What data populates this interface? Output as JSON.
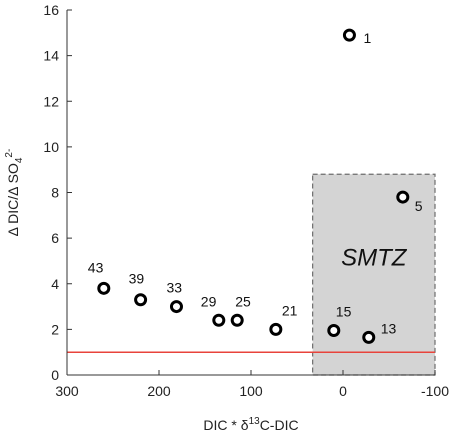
{
  "chart_data": {
    "type": "scatter",
    "xlabel": "DIC * δ13C-DIC",
    "xlabel_parts": [
      "DIC * δ",
      "13",
      "C-DIC"
    ],
    "ylabel": "Δ DIC/Δ SO4 2-",
    "ylabel_parts": [
      "Δ DIC/Δ SO",
      "4",
      "2-"
    ],
    "xlim": [
      300,
      -100
    ],
    "x_reversed": true,
    "ylim": [
      0,
      16
    ],
    "x_ticks": [
      300,
      200,
      100,
      0,
      -100
    ],
    "y_ticks": [
      0,
      2,
      4,
      6,
      8,
      10,
      12,
      14,
      16
    ],
    "points": [
      {
        "label": "1",
        "x": -7,
        "y": 14.9
      },
      {
        "label": "5",
        "x": -65,
        "y": 7.8
      },
      {
        "label": "43",
        "x": 260,
        "y": 3.8
      },
      {
        "label": "39",
        "x": 220,
        "y": 3.3
      },
      {
        "label": "33",
        "x": 181,
        "y": 3.0
      },
      {
        "label": "29",
        "x": 135,
        "y": 2.4
      },
      {
        "label": "25",
        "x": 115,
        "y": 2.4
      },
      {
        "label": "21",
        "x": 73,
        "y": 2.0
      },
      {
        "label": "15",
        "x": 10,
        "y": 1.95
      },
      {
        "label": "13",
        "x": -28,
        "y": 1.65
      }
    ],
    "reference_line": {
      "y": 1.0,
      "color": "#e8433b"
    },
    "zone": {
      "label": "SMTZ",
      "x_from": 33,
      "x_to": -100,
      "y_from": 0,
      "y_to": 8.8,
      "fill": "#d4d4d4",
      "border": "#6e6e6e"
    },
    "marker_color": "#000000",
    "grid": false
  }
}
